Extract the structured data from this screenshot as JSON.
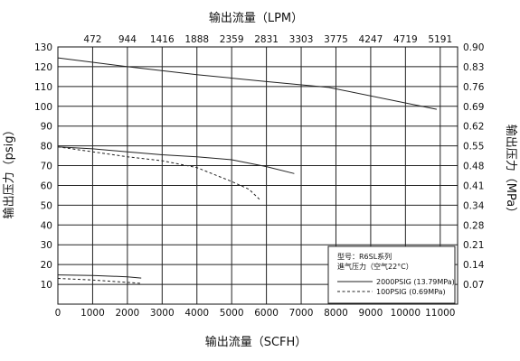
{
  "chart_data": {
    "type": "line",
    "xlabel": "输出流量（SCFH）",
    "x2label": "输出流量（LPM）",
    "ylabel": "输出压力（psig）",
    "y2label": "输出压力（MPa）",
    "xlim": [
      0,
      11500
    ],
    "ylim": [
      0,
      130
    ],
    "x_ticks": [
      0,
      1000,
      2000,
      3000,
      4000,
      5000,
      6000,
      7000,
      8000,
      9000,
      10000,
      11000
    ],
    "x_tick_labels": [
      "0",
      "1000",
      "2000",
      "3000",
      "4000",
      "5000",
      "6000",
      "7000",
      "8000",
      "9000",
      "10000",
      "11000"
    ],
    "y_ticks": [
      10,
      20,
      30,
      40,
      50,
      60,
      70,
      80,
      90,
      100,
      110,
      120,
      130
    ],
    "y_tick_labels": [
      "10",
      "20",
      "30",
      "40",
      "50",
      "60",
      "70",
      "80",
      "90",
      "100",
      "110",
      "120",
      "130"
    ],
    "x2_tick_labels": [
      "472",
      "944",
      "1416",
      "1888",
      "2359",
      "2831",
      "3303",
      "3775",
      "4247",
      "4719",
      "5191"
    ],
    "y2_tick_labels": [
      "0.07",
      "0.14",
      "0.21",
      "0.28",
      "0.34",
      "0.41",
      "0.48",
      "0.55",
      "0.62",
      "0.69",
      "0.76",
      "0.83",
      "0.90"
    ],
    "grid": true,
    "legend_position": "bottom-right",
    "legend": {
      "line1": "型号：R6SL系列",
      "line2": "進气压力（空气22°C）",
      "items": [
        {
          "label": "2000PSIG    (13.79MPa)",
          "style": "solid"
        },
        {
          "label": "100PSIG    (0.69MPa)",
          "style": "dashed"
        }
      ]
    },
    "series": [
      {
        "style": "solid",
        "x": [
          0,
          2000,
          4000,
          6000,
          7800,
          10900
        ],
        "y": [
          124.5,
          120,
          116,
          112.5,
          109.5,
          98.5
        ]
      },
      {
        "style": "solid",
        "x": [
          0,
          1000,
          2000,
          3000,
          4000,
          5000,
          6000,
          6800
        ],
        "y": [
          79.5,
          78.5,
          77,
          75.5,
          74.5,
          73,
          69.5,
          66
        ]
      },
      {
        "style": "dashed",
        "x": [
          0,
          1000,
          2000,
          3000,
          4000,
          5000,
          5500,
          5800
        ],
        "y": [
          79.5,
          77,
          74.5,
          72.5,
          69,
          62,
          58,
          53
        ]
      },
      {
        "style": "solid",
        "x": [
          0,
          1000,
          2000,
          2400
        ],
        "y": [
          14.8,
          14.5,
          13.8,
          13.2
        ]
      },
      {
        "style": "dashed",
        "x": [
          0,
          1000,
          2000,
          2400
        ],
        "y": [
          13,
          12.2,
          11,
          10.5
        ]
      }
    ]
  }
}
